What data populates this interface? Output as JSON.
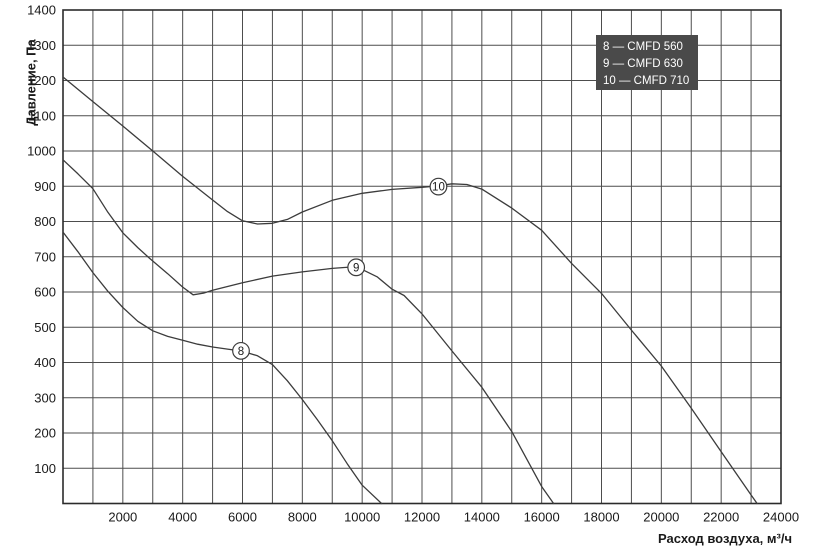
{
  "chart_data": {
    "type": "line",
    "title": "",
    "xlabel": "Расход воздуха, м³/ч",
    "ylabel": "Давление, Па",
    "xlim": [
      0,
      24000
    ],
    "ylim": [
      0,
      1400
    ],
    "x_grid_step": 1000,
    "y_grid_step": 100,
    "x_label_step": 2000,
    "y_label_step": 100,
    "grid": true,
    "colors": {
      "grid": "#4d4d4d",
      "frame": "#2b2b2b",
      "curve": "#3c3c3c",
      "legend_bg": "#4a4a4a",
      "legend_text": "#ffffff",
      "text": "#1a1a1a",
      "marker_fill": "#ffffff"
    },
    "legend": {
      "position": "top-right",
      "entries": [
        {
          "label": "8 — CMFD 560"
        },
        {
          "label": "9 — CMFD 630"
        },
        {
          "label": "10 — CMFD 710"
        }
      ]
    },
    "series": [
      {
        "name": "CMFD 560",
        "marker_label": "8",
        "marker_at": [
          5950,
          433
        ],
        "points": [
          [
            0,
            770
          ],
          [
            500,
            714
          ],
          [
            1000,
            655
          ],
          [
            1500,
            602
          ],
          [
            2000,
            556
          ],
          [
            2500,
            517
          ],
          [
            3000,
            490
          ],
          [
            3500,
            474
          ],
          [
            4000,
            463
          ],
          [
            4500,
            452
          ],
          [
            5000,
            444
          ],
          [
            5500,
            438
          ],
          [
            6000,
            432
          ],
          [
            6500,
            419
          ],
          [
            7000,
            394
          ],
          [
            7500,
            348
          ],
          [
            8000,
            295
          ],
          [
            8500,
            238
          ],
          [
            9000,
            178
          ],
          [
            9500,
            113
          ],
          [
            10000,
            52
          ],
          [
            10650,
            0
          ]
        ]
      },
      {
        "name": "CMFD 630",
        "marker_label": "9",
        "marker_at": [
          9800,
          670
        ],
        "points": [
          [
            0,
            975
          ],
          [
            500,
            935
          ],
          [
            1000,
            893
          ],
          [
            1500,
            826
          ],
          [
            2000,
            768
          ],
          [
            2500,
            726
          ],
          [
            2900,
            695
          ],
          [
            3500,
            652
          ],
          [
            4000,
            614
          ],
          [
            4350,
            592
          ],
          [
            4700,
            597
          ],
          [
            5000,
            605
          ],
          [
            6000,
            626
          ],
          [
            7000,
            645
          ],
          [
            8000,
            657
          ],
          [
            9000,
            667
          ],
          [
            9800,
            672
          ],
          [
            10500,
            643
          ],
          [
            11000,
            608
          ],
          [
            11400,
            590
          ],
          [
            12000,
            538
          ],
          [
            13000,
            433
          ],
          [
            14000,
            330
          ],
          [
            15000,
            204
          ],
          [
            16000,
            48
          ],
          [
            16400,
            0
          ]
        ]
      },
      {
        "name": "CMFD 710",
        "marker_label": "10",
        "marker_at": [
          12550,
          899
        ],
        "points": [
          [
            0,
            1210
          ],
          [
            1000,
            1140
          ],
          [
            2000,
            1071
          ],
          [
            3000,
            1000
          ],
          [
            4000,
            928
          ],
          [
            5000,
            861
          ],
          [
            5500,
            828
          ],
          [
            6000,
            802
          ],
          [
            6500,
            793
          ],
          [
            7000,
            795
          ],
          [
            7500,
            806
          ],
          [
            8000,
            827
          ],
          [
            9000,
            860
          ],
          [
            10000,
            880
          ],
          [
            11000,
            891
          ],
          [
            12000,
            897
          ],
          [
            12550,
            901
          ],
          [
            13000,
            907
          ],
          [
            13500,
            905
          ],
          [
            14000,
            892
          ],
          [
            15000,
            838
          ],
          [
            16000,
            775
          ],
          [
            17000,
            681
          ],
          [
            18000,
            596
          ],
          [
            19000,
            492
          ],
          [
            20000,
            390
          ],
          [
            21000,
            270
          ],
          [
            22000,
            147
          ],
          [
            23000,
            24
          ],
          [
            23200,
            0
          ]
        ]
      }
    ]
  }
}
